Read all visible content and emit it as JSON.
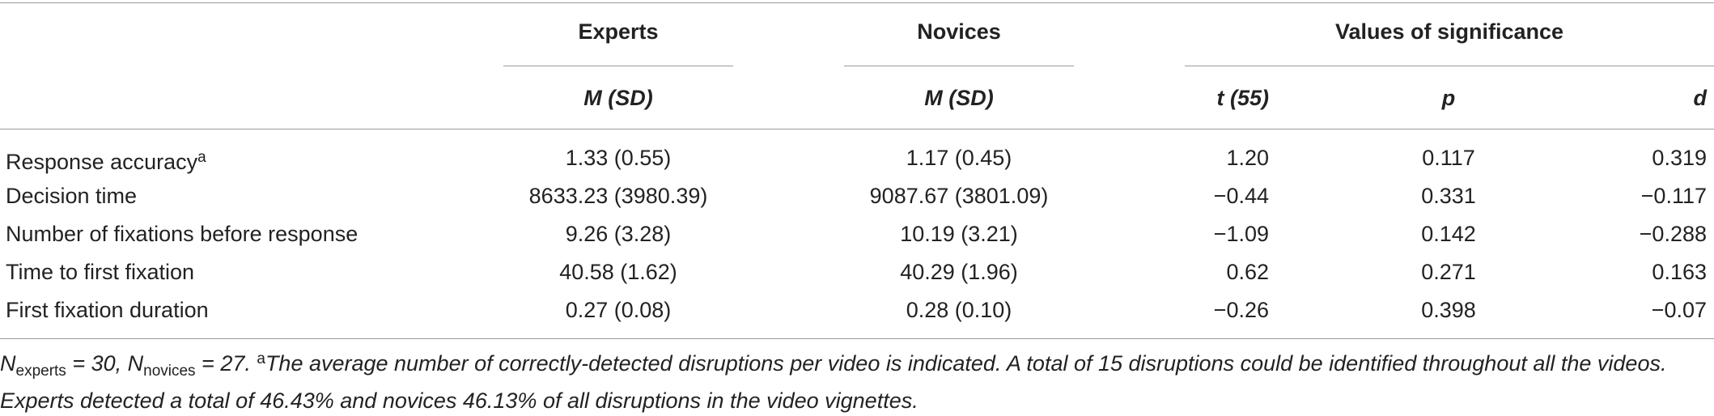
{
  "table": {
    "group_headers": {
      "experts": "Experts",
      "novices": "Novices",
      "significance": "Values of significance"
    },
    "sub_headers": {
      "experts": "M (SD)",
      "novices": "M (SD)",
      "t": "t (55)",
      "p": "p",
      "d": "d"
    },
    "rows": [
      {
        "label": "Response accuracy",
        "label_sup": "a",
        "experts": "1.33 (0.55)",
        "novices": "1.17 (0.45)",
        "t": "1.20",
        "p": "0.117",
        "d": "0.319"
      },
      {
        "label": "Decision time",
        "experts": "8633.23 (3980.39)",
        "novices": "9087.67 (3801.09)",
        "t": "−0.44",
        "p": "0.331",
        "d": "−0.117"
      },
      {
        "label": "Number of fixations before response",
        "experts": "9.26 (3.28)",
        "novices": "10.19 (3.21)",
        "t": "−1.09",
        "p": "0.142",
        "d": "−0.288"
      },
      {
        "label": "Time to first fixation",
        "experts": "40.58 (1.62)",
        "novices": "40.29 (1.96)",
        "t": "0.62",
        "p": "0.271",
        "d": "0.163"
      },
      {
        "label": "First fixation duration",
        "experts": "0.27 (0.08)",
        "novices": "0.28 (0.10)",
        "t": "−0.26",
        "p": "0.398",
        "d": "−0.07"
      }
    ]
  },
  "footnote": {
    "n_symbol": "N",
    "experts_sub": "experts",
    "experts_value": " = 30, ",
    "novices_sub": "novices",
    "novices_value": " = 27. ",
    "marker": "a",
    "text": "The average number of correctly-detected disruptions per video is indicated. A total of 15 disruptions could be identified throughout all the videos. Experts detected a total of 46.43% and novices 46.13% of all disruptions in the video vignettes."
  }
}
